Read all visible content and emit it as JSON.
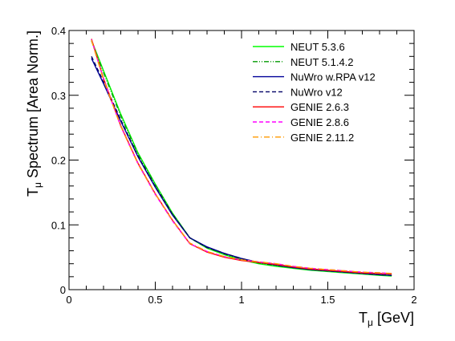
{
  "chart_data": {
    "type": "line",
    "title": "",
    "xlabel": {
      "main": "T",
      "sub": "μ",
      "rest": " [GeV]"
    },
    "ylabel": {
      "main": "T",
      "sub": "μ",
      "rest": " Spectrum [Area Norm.]"
    },
    "xlim": [
      0,
      2
    ],
    "ylim": [
      0,
      0.4
    ],
    "xticks": [
      {
        "value": 0,
        "label": "0"
      },
      {
        "value": 0.5,
        "label": "0.5"
      },
      {
        "value": 1,
        "label": "1"
      },
      {
        "value": 1.5,
        "label": "1.5"
      },
      {
        "value": 2,
        "label": "2"
      }
    ],
    "yticks": [
      {
        "value": 0,
        "label": "0"
      },
      {
        "value": 0.1,
        "label": "0.1"
      },
      {
        "value": 0.2,
        "label": "0.2"
      },
      {
        "value": 0.3,
        "label": "0.3"
      },
      {
        "value": 0.4,
        "label": "0.4"
      }
    ],
    "grid": false,
    "legend_position": "top-right",
    "series": [
      {
        "name": "NEUT 5.3.6",
        "color": "#00ff00",
        "dash": "solid",
        "x": [
          0.13,
          0.2,
          0.3,
          0.4,
          0.5,
          0.6,
          0.7,
          0.8,
          0.9,
          1.0,
          1.1,
          1.2,
          1.3,
          1.4,
          1.5,
          1.6,
          1.7,
          1.8,
          1.87
        ],
        "y": [
          0.385,
          0.338,
          0.271,
          0.211,
          0.163,
          0.118,
          0.08,
          0.064,
          0.054,
          0.046,
          0.04,
          0.036,
          0.033,
          0.03,
          0.028,
          0.026,
          0.024,
          0.022,
          0.021
        ]
      },
      {
        "name": "NEUT 5.1.4.2",
        "color": "#009900",
        "dash": "dashdotdot",
        "x": [
          0.13,
          0.2,
          0.3,
          0.4,
          0.5,
          0.6,
          0.7,
          0.8,
          0.9,
          1.0,
          1.1,
          1.2,
          1.3,
          1.4,
          1.5,
          1.6,
          1.7,
          1.8,
          1.87
        ],
        "y": [
          0.384,
          0.335,
          0.268,
          0.209,
          0.162,
          0.117,
          0.08,
          0.065,
          0.055,
          0.047,
          0.041,
          0.037,
          0.034,
          0.031,
          0.029,
          0.027,
          0.025,
          0.023,
          0.022
        ]
      },
      {
        "name": "NuWro w.RPA v12",
        "color": "#000099",
        "dash": "solid",
        "x": [
          0.13,
          0.2,
          0.3,
          0.4,
          0.5,
          0.6,
          0.7,
          0.8,
          0.9,
          1.0,
          1.1,
          1.2,
          1.3,
          1.4,
          1.5,
          1.6,
          1.7,
          1.8,
          1.87
        ],
        "y": [
          0.357,
          0.318,
          0.26,
          0.205,
          0.158,
          0.115,
          0.08,
          0.066,
          0.056,
          0.048,
          0.042,
          0.038,
          0.034,
          0.031,
          0.029,
          0.027,
          0.025,
          0.023,
          0.022
        ]
      },
      {
        "name": "NuWro v12",
        "color": "#000066",
        "dash": "dashed",
        "x": [
          0.13,
          0.2,
          0.3,
          0.4,
          0.5,
          0.6,
          0.7,
          0.8,
          0.9,
          1.0,
          1.1,
          1.2,
          1.3,
          1.4,
          1.5,
          1.6,
          1.7,
          1.8,
          1.87
        ],
        "y": [
          0.36,
          0.321,
          0.262,
          0.206,
          0.159,
          0.116,
          0.08,
          0.065,
          0.056,
          0.048,
          0.042,
          0.038,
          0.034,
          0.031,
          0.029,
          0.027,
          0.025,
          0.023,
          0.022
        ]
      },
      {
        "name": "GENIE 2.6.3",
        "color": "#ff0000",
        "dash": "solid",
        "x": [
          0.13,
          0.2,
          0.3,
          0.4,
          0.5,
          0.6,
          0.7,
          0.8,
          0.9,
          1.0,
          1.1,
          1.2,
          1.3,
          1.4,
          1.5,
          1.6,
          1.7,
          1.8,
          1.87
        ],
        "y": [
          0.387,
          0.326,
          0.253,
          0.195,
          0.148,
          0.107,
          0.071,
          0.058,
          0.05,
          0.045,
          0.042,
          0.039,
          0.035,
          0.032,
          0.03,
          0.028,
          0.026,
          0.025,
          0.024
        ]
      },
      {
        "name": "GENIE 2.8.6",
        "color": "#ff00ff",
        "dash": "dashed",
        "x": [
          0.13,
          0.2,
          0.3,
          0.4,
          0.5,
          0.6,
          0.7,
          0.8,
          0.9,
          1.0,
          1.1,
          1.2,
          1.3,
          1.4,
          1.5,
          1.6,
          1.7,
          1.8,
          1.87
        ],
        "y": [
          0.386,
          0.325,
          0.252,
          0.194,
          0.147,
          0.106,
          0.071,
          0.059,
          0.051,
          0.046,
          0.043,
          0.04,
          0.036,
          0.033,
          0.031,
          0.029,
          0.027,
          0.026,
          0.025
        ]
      },
      {
        "name": "GENIE 2.11.2",
        "color": "#ff9900",
        "dash": "dashdot",
        "x": [
          0.13,
          0.2,
          0.3,
          0.4,
          0.5,
          0.6,
          0.7,
          0.8,
          0.9,
          1.0,
          1.1,
          1.2,
          1.3,
          1.4,
          1.5,
          1.6,
          1.7,
          1.8,
          1.87
        ],
        "y": [
          0.385,
          0.324,
          0.252,
          0.194,
          0.148,
          0.107,
          0.072,
          0.059,
          0.051,
          0.046,
          0.043,
          0.04,
          0.036,
          0.033,
          0.031,
          0.029,
          0.027,
          0.026,
          0.025
        ]
      }
    ]
  }
}
